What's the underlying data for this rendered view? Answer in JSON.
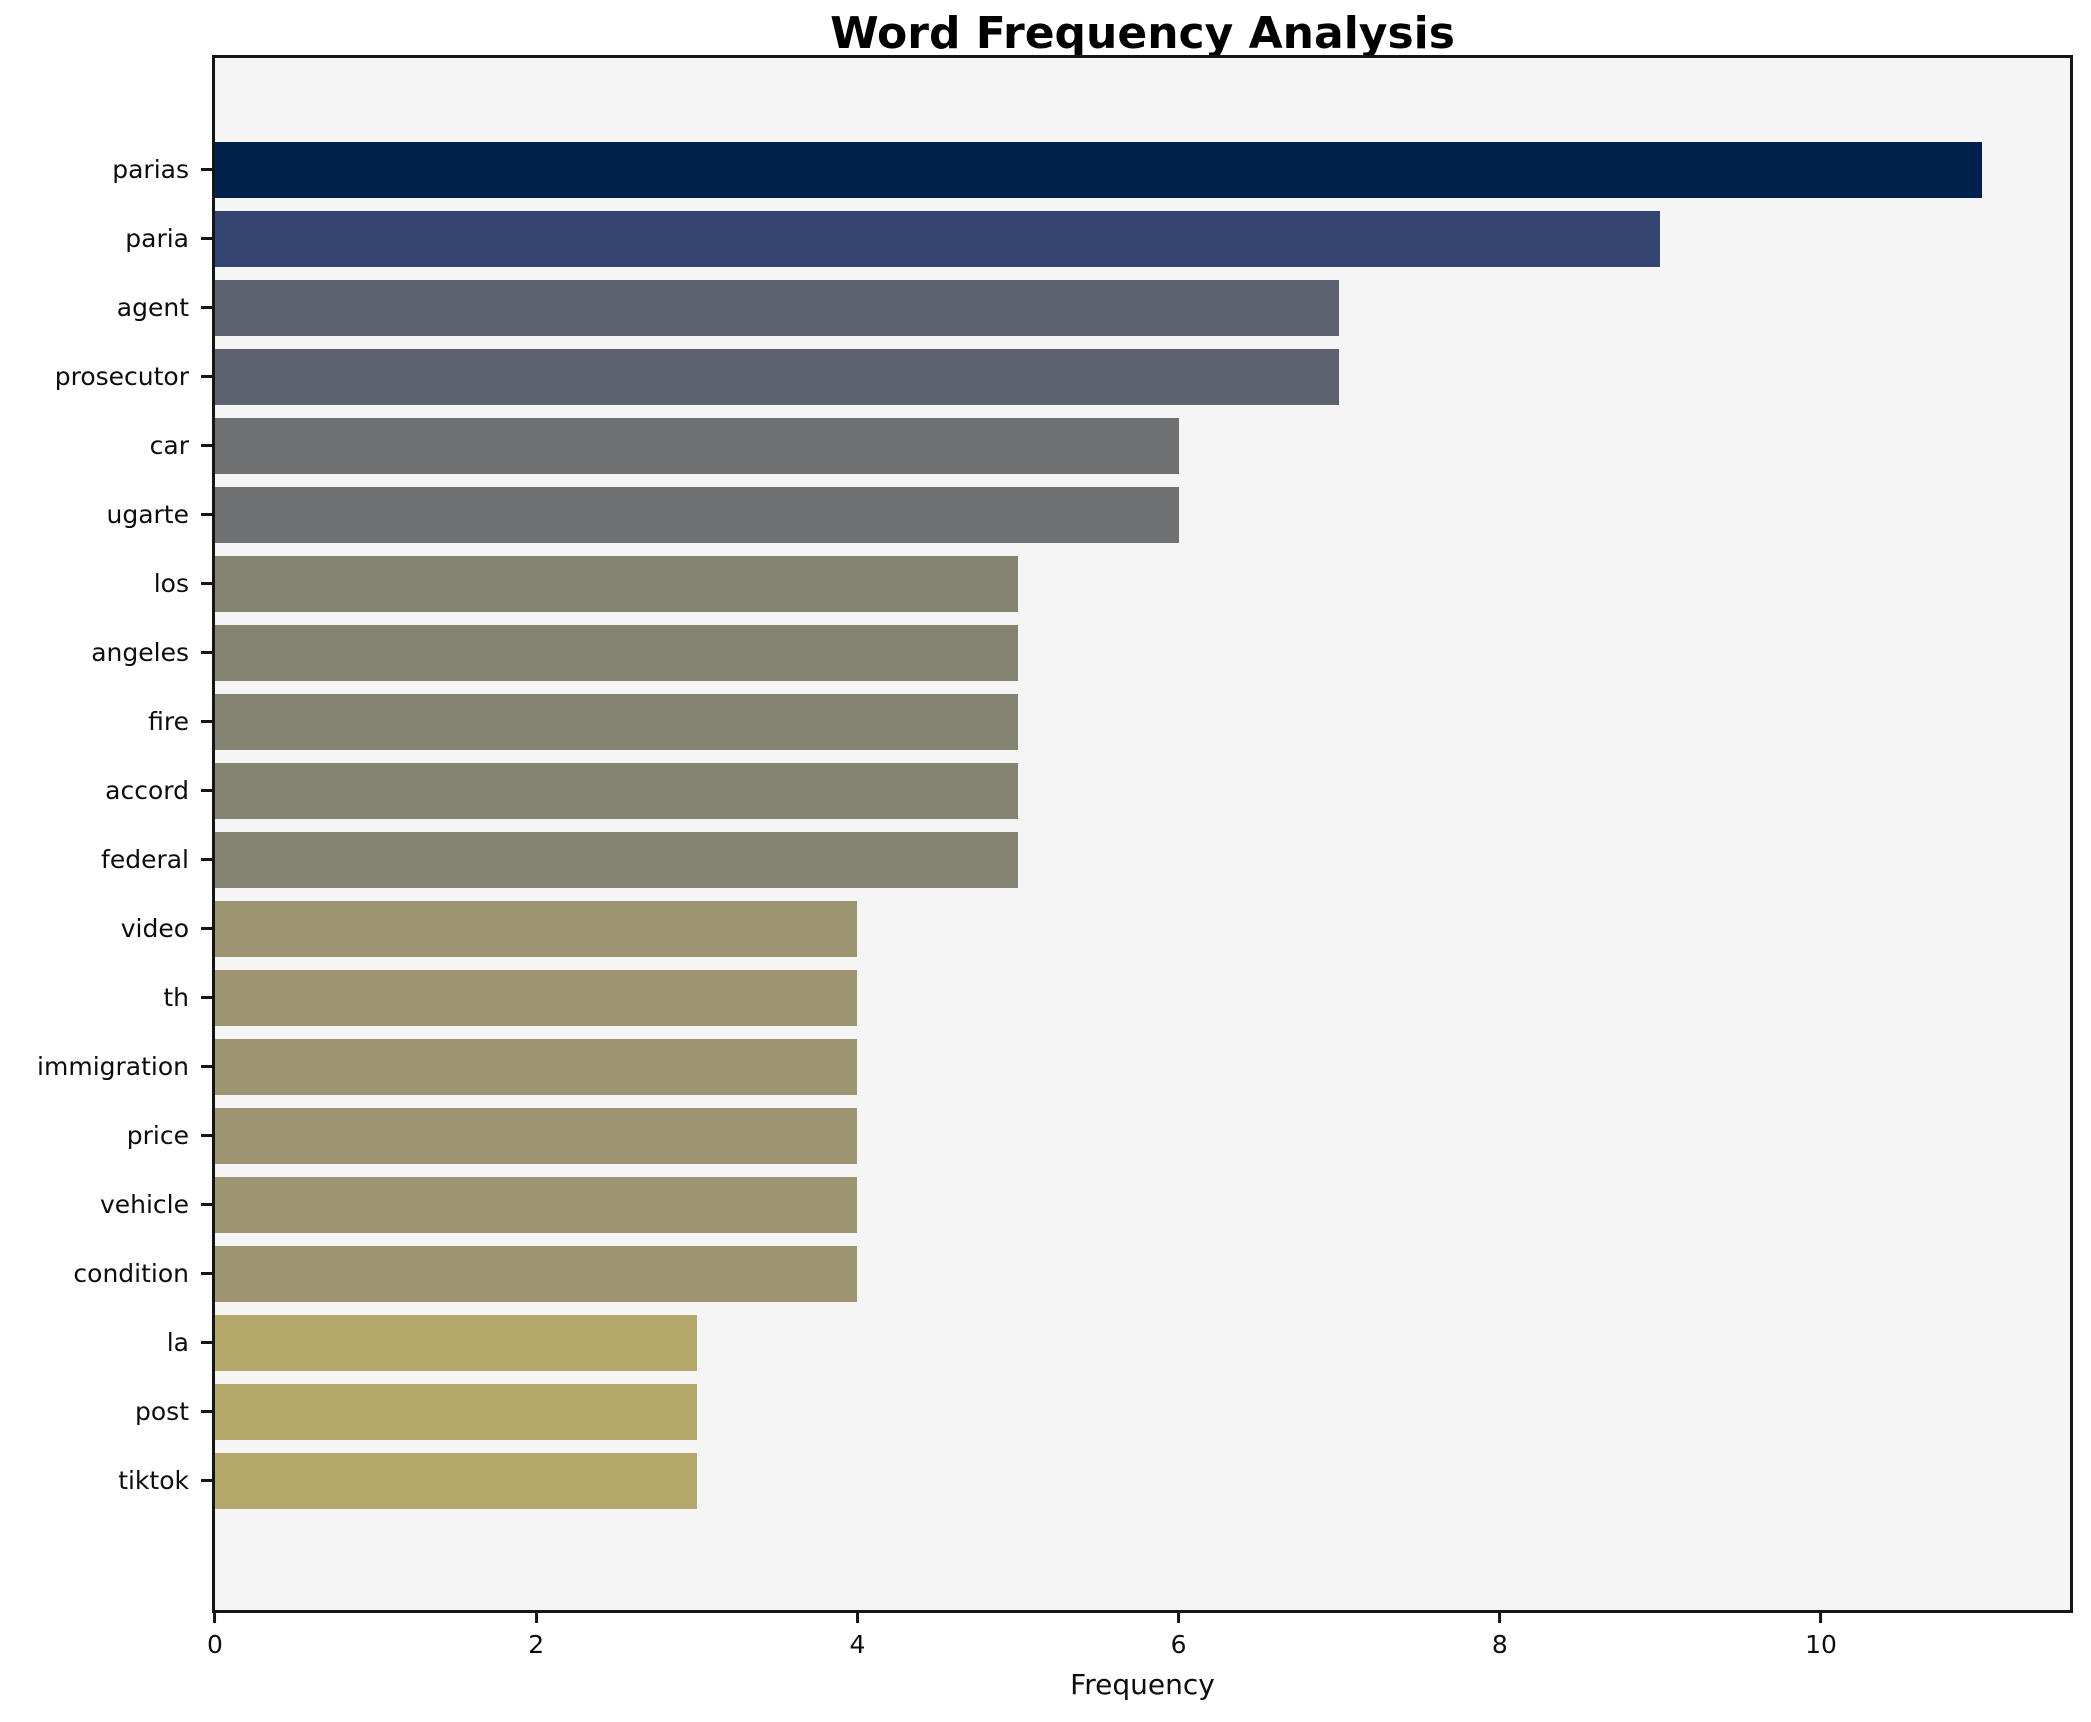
{
  "chart_data": {
    "type": "bar",
    "orientation": "horizontal",
    "title": "Word Frequency Analysis",
    "xlabel": "Frequency",
    "ylabel": "",
    "categories": [
      "parias",
      "paria",
      "agent",
      "prosecutor",
      "car",
      "ugarte",
      "los",
      "angeles",
      "fire",
      "accord",
      "federal",
      "video",
      "th",
      "immigration",
      "price",
      "vehicle",
      "condition",
      "la",
      "post",
      "tiktok"
    ],
    "values": [
      11,
      9,
      7,
      7,
      6,
      6,
      5,
      5,
      5,
      5,
      5,
      4,
      4,
      4,
      4,
      4,
      4,
      3,
      3,
      3
    ],
    "bar_colors": [
      "#00224d",
      "#344571",
      "#5d6371",
      "#5d6371",
      "#6f7072",
      "#6f7072",
      "#858372",
      "#858372",
      "#858372",
      "#858372",
      "#858372",
      "#9d9571",
      "#9d9571",
      "#9d9571",
      "#9d9571",
      "#9d9571",
      "#9d9571",
      "#b3a86a",
      "#b3a86a",
      "#b3a86a"
    ],
    "xlim": [
      0,
      11.55
    ],
    "xticks": [
      0,
      2,
      4,
      6,
      8,
      10
    ],
    "grid": false,
    "legend": null,
    "plot_background": "#f5f5f6",
    "figure_background": "#ffffff",
    "spine_color": "#151515"
  }
}
